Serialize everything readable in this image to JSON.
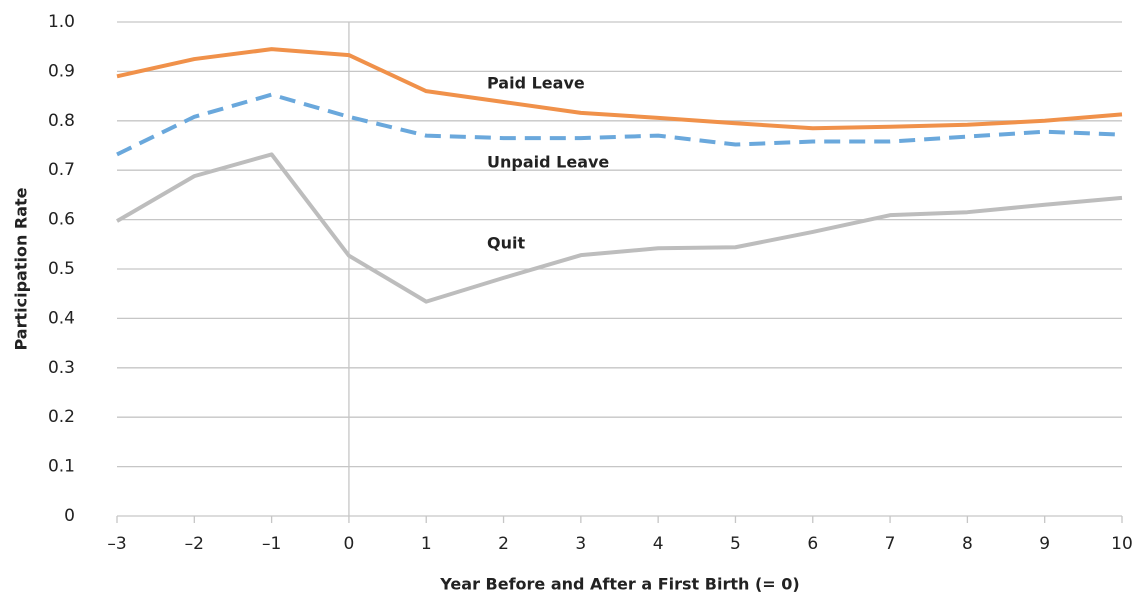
{
  "chart_data": {
    "type": "line",
    "x_label": "Year Before and After a First Birth (= 0)",
    "y_label": "Participation Rate",
    "x": [
      -3,
      -2,
      -1,
      0,
      1,
      2,
      3,
      4,
      5,
      6,
      7,
      8,
      9,
      10
    ],
    "series": [
      {
        "name": "Paid Leave",
        "color": "#f0914a",
        "dashed": false,
        "values": [
          0.89,
          0.925,
          0.945,
          0.933,
          0.86,
          0.838,
          0.816,
          0.806,
          0.795,
          0.785,
          0.788,
          0.792,
          0.8,
          0.813
        ]
      },
      {
        "name": "Unpaid Leave",
        "color": "#6aa8dc",
        "dashed": true,
        "values": [
          0.732,
          0.808,
          0.853,
          0.808,
          0.77,
          0.765,
          0.765,
          0.77,
          0.752,
          0.758,
          0.758,
          0.768,
          0.778,
          0.772
        ]
      },
      {
        "name": "Quit",
        "color": "#bdbdbd",
        "dashed": false,
        "values": [
          0.597,
          0.688,
          0.732,
          0.527,
          0.434,
          0.482,
          0.528,
          0.542,
          0.544,
          0.575,
          0.609,
          0.615,
          0.63,
          0.644
        ]
      }
    ],
    "xlim": [
      -3,
      10
    ],
    "xticks": [
      {
        "value": -3,
        "label": "–3"
      },
      {
        "value": -2,
        "label": "–2"
      },
      {
        "value": -1,
        "label": "–1"
      },
      0,
      1,
      2,
      3,
      4,
      5,
      6,
      7,
      8,
      9,
      10
    ],
    "ylim": [
      0,
      1
    ],
    "yticks": [
      0,
      0.1,
      0.2,
      0.3,
      0.4,
      0.5,
      0.6,
      0.7,
      0.8,
      0.9,
      {
        "value": 1,
        "label": "1.0"
      }
    ],
    "grid": true,
    "reference_x": 0
  }
}
